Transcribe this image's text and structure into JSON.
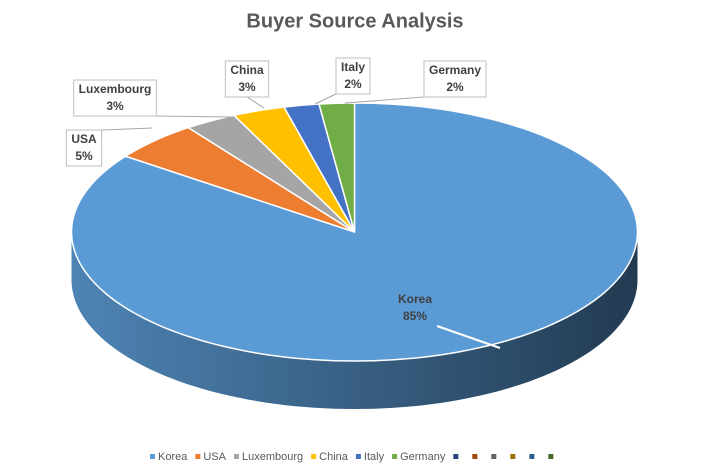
{
  "chart_data": {
    "type": "pie3d",
    "title": "Buyer Source Analysis",
    "categories": [
      "Korea",
      "USA",
      "Luxembourg",
      "China",
      "Italy",
      "Germany",
      null,
      null,
      null,
      null,
      null,
      null
    ],
    "values": [
      85,
      5,
      3,
      3,
      2,
      2,
      null,
      null,
      null,
      null,
      null,
      null
    ],
    "value_labels": [
      "85%",
      "5%",
      "3%",
      "3%",
      "2%",
      "2%",
      null,
      null,
      null,
      null,
      null,
      null
    ],
    "colors": [
      "#5b9bd5",
      "#ed7d31",
      "#a5a5a5",
      "#ffc000",
      "#4472c4",
      "#70ad47",
      "#264478",
      "#9e480e",
      "#636363",
      "#997300",
      "#255e91",
      "#43682b"
    ],
    "legend": "bottom"
  }
}
